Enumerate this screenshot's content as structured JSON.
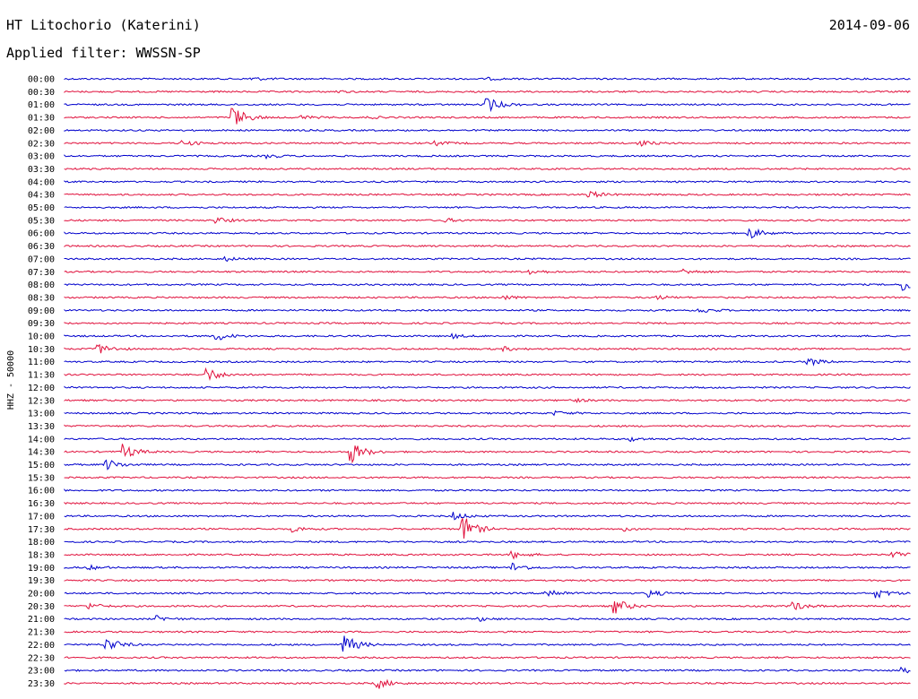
{
  "header": {
    "title": "HT Litochorio (Katerini)",
    "date": "2014-09-06",
    "filter": "Applied filter: WWSSN-SP"
  },
  "chart_data": {
    "type": "line",
    "title": "HT Litochorio (Katerini)",
    "ylabel": "HHZ - 50000",
    "colors": [
      "#0000cc",
      "#e0103c"
    ],
    "rows": [
      {
        "label": "00:00",
        "events": [
          {
            "t": 0.22,
            "amp": 2
          },
          {
            "t": 0.5,
            "amp": 1
          }
        ]
      },
      {
        "label": "00:30",
        "events": [
          {
            "t": 0.32,
            "amp": 1
          }
        ]
      },
      {
        "label": "01:00",
        "events": [
          {
            "t": 0.5,
            "amp": 8
          }
        ]
      },
      {
        "label": "01:30",
        "events": [
          {
            "t": 0.2,
            "amp": 12
          },
          {
            "t": 0.28,
            "amp": 2
          },
          {
            "t": 0.36,
            "amp": 1
          }
        ]
      },
      {
        "label": "02:00",
        "events": []
      },
      {
        "label": "02:30",
        "events": [
          {
            "t": 0.14,
            "amp": 3
          },
          {
            "t": 0.44,
            "amp": 2
          },
          {
            "t": 0.68,
            "amp": 3
          }
        ]
      },
      {
        "label": "03:00",
        "events": [
          {
            "t": 0.24,
            "amp": 2
          }
        ]
      },
      {
        "label": "03:30",
        "events": []
      },
      {
        "label": "04:00",
        "events": []
      },
      {
        "label": "04:30",
        "events": [
          {
            "t": 0.62,
            "amp": 4
          }
        ]
      },
      {
        "label": "05:00",
        "events": []
      },
      {
        "label": "05:30",
        "events": [
          {
            "t": 0.18,
            "amp": 3
          },
          {
            "t": 0.45,
            "amp": 2
          }
        ]
      },
      {
        "label": "06:00",
        "events": [
          {
            "t": 0.81,
            "amp": 6
          }
        ]
      },
      {
        "label": "06:30",
        "events": []
      },
      {
        "label": "07:00",
        "events": [
          {
            "t": 0.19,
            "amp": 2
          }
        ]
      },
      {
        "label": "07:30",
        "events": [
          {
            "t": 0.55,
            "amp": 3
          },
          {
            "t": 0.73,
            "amp": 3
          }
        ]
      },
      {
        "label": "08:00",
        "events": [
          {
            "t": 0.99,
            "amp": 9
          }
        ]
      },
      {
        "label": "08:30",
        "events": [
          {
            "t": 0.52,
            "amp": 2
          },
          {
            "t": 0.7,
            "amp": 2
          }
        ]
      },
      {
        "label": "09:00",
        "events": [
          {
            "t": 0.75,
            "amp": 3
          }
        ]
      },
      {
        "label": "09:30",
        "events": []
      },
      {
        "label": "10:00",
        "events": [
          {
            "t": 0.18,
            "amp": 5
          },
          {
            "t": 0.46,
            "amp": 2
          }
        ]
      },
      {
        "label": "10:30",
        "events": [
          {
            "t": 0.04,
            "amp": 6
          },
          {
            "t": 0.52,
            "amp": 2
          }
        ]
      },
      {
        "label": "11:00",
        "events": [
          {
            "t": 0.88,
            "amp": 4
          }
        ]
      },
      {
        "label": "11:30",
        "events": [
          {
            "t": 0.17,
            "amp": 7
          }
        ]
      },
      {
        "label": "12:00",
        "events": []
      },
      {
        "label": "12:30",
        "events": [
          {
            "t": 0.6,
            "amp": 2
          }
        ]
      },
      {
        "label": "13:00",
        "events": [
          {
            "t": 0.58,
            "amp": 2
          }
        ]
      },
      {
        "label": "13:30",
        "events": []
      },
      {
        "label": "14:00",
        "events": [
          {
            "t": 0.67,
            "amp": 2
          }
        ]
      },
      {
        "label": "14:30",
        "events": [
          {
            "t": 0.07,
            "amp": 8
          },
          {
            "t": 0.34,
            "amp": 11
          }
        ]
      },
      {
        "label": "15:00",
        "events": [
          {
            "t": 0.05,
            "amp": 6
          }
        ]
      },
      {
        "label": "15:30",
        "events": []
      },
      {
        "label": "16:00",
        "events": []
      },
      {
        "label": "16:30",
        "events": []
      },
      {
        "label": "17:00",
        "events": [
          {
            "t": 0.46,
            "amp": 4
          }
        ]
      },
      {
        "label": "17:30",
        "events": [
          {
            "t": 0.47,
            "amp": 16
          },
          {
            "t": 0.27,
            "amp": 3
          },
          {
            "t": 0.66,
            "amp": 2
          }
        ]
      },
      {
        "label": "18:00",
        "events": []
      },
      {
        "label": "18:30",
        "events": [
          {
            "t": 0.53,
            "amp": 4
          },
          {
            "t": 0.98,
            "amp": 4
          }
        ]
      },
      {
        "label": "19:00",
        "events": [
          {
            "t": 0.53,
            "amp": 5
          },
          {
            "t": 0.03,
            "amp": 2
          }
        ]
      },
      {
        "label": "19:30",
        "events": []
      },
      {
        "label": "20:00",
        "events": [
          {
            "t": 0.57,
            "amp": 6
          },
          {
            "t": 0.69,
            "amp": 4
          },
          {
            "t": 0.96,
            "amp": 5
          }
        ]
      },
      {
        "label": "20:30",
        "events": [
          {
            "t": 0.65,
            "amp": 9
          },
          {
            "t": 0.86,
            "amp": 5
          },
          {
            "t": 0.03,
            "amp": 3
          }
        ]
      },
      {
        "label": "21:00",
        "events": [
          {
            "t": 0.11,
            "amp": 3
          },
          {
            "t": 0.49,
            "amp": 2
          }
        ]
      },
      {
        "label": "21:30",
        "events": []
      },
      {
        "label": "22:00",
        "events": [
          {
            "t": 0.05,
            "amp": 8
          },
          {
            "t": 0.33,
            "amp": 12
          }
        ]
      },
      {
        "label": "22:30",
        "events": []
      },
      {
        "label": "23:00",
        "events": [
          {
            "t": 0.99,
            "amp": 4
          }
        ]
      },
      {
        "label": "23:30",
        "events": [
          {
            "t": 0.37,
            "amp": 6
          }
        ]
      }
    ]
  }
}
